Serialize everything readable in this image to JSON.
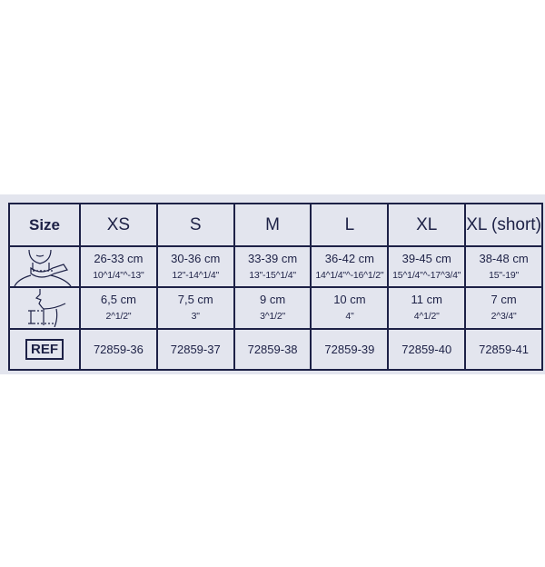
{
  "table": {
    "size_label": "Size",
    "ref_label": "REF",
    "icons": {
      "neck_circumference": "neck-measure-icon",
      "collar_height": "collar-height-icon"
    },
    "sizes": [
      {
        "name": "XS",
        "circ_cm": "26-33 cm",
        "circ_in": "10^1/4\"^-13\"",
        "height_cm": "6,5 cm",
        "height_in": "2^1/2\"",
        "ref": "72859-36"
      },
      {
        "name": "S",
        "circ_cm": "30-36 cm",
        "circ_in": "12\"-14^1/4\"",
        "height_cm": "7,5 cm",
        "height_in": "3\"",
        "ref": "72859-37"
      },
      {
        "name": "M",
        "circ_cm": "33-39 cm",
        "circ_in": "13\"-15^1/4\"",
        "height_cm": "9 cm",
        "height_in": "3^1/2\"",
        "ref": "72859-38"
      },
      {
        "name": "L",
        "circ_cm": "36-42 cm",
        "circ_in": "14^1/4\"^-16^1/2\"",
        "height_cm": "10 cm",
        "height_in": "4\"",
        "ref": "72859-39"
      },
      {
        "name": "XL",
        "circ_cm": "39-45 cm",
        "circ_in": "15^1/4\"^-17^3/4\"",
        "height_cm": "11 cm",
        "height_in": "4^1/2\"",
        "ref": "72859-40"
      },
      {
        "name": "XL (short)",
        "circ_cm": "38-48 cm",
        "circ_in": "15\"-19\"",
        "height_cm": "7 cm",
        "height_in": "2^3/4\"",
        "ref": "72859-41"
      }
    ]
  }
}
